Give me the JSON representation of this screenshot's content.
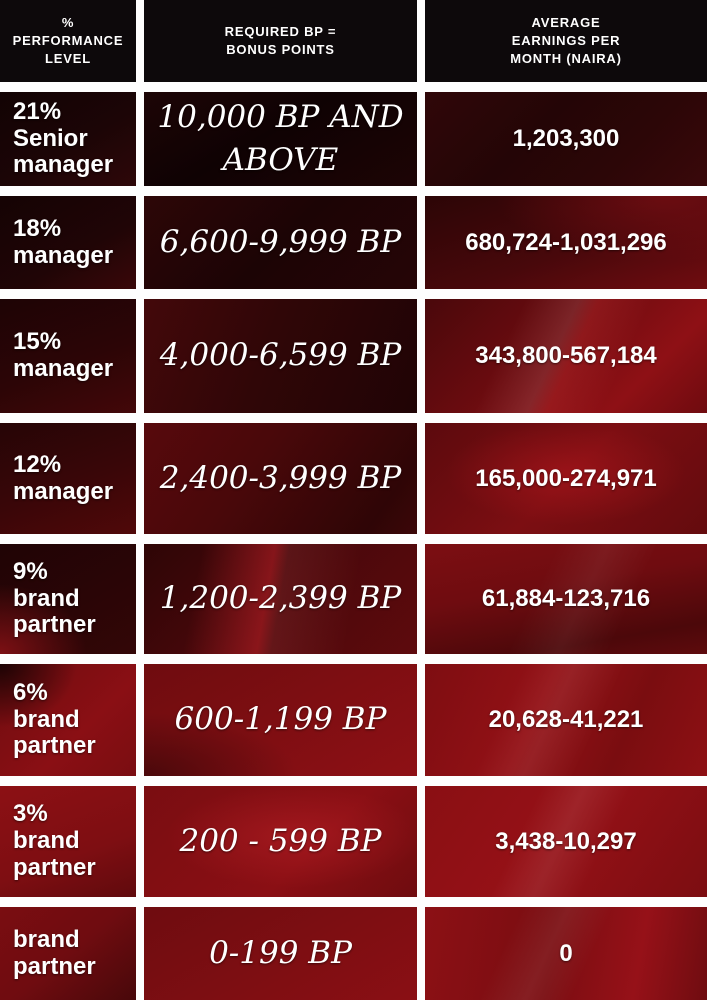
{
  "colors": {
    "grid_gap_white": "#fefefe",
    "header_black": "#0d090b",
    "silk_red_bright": "#8a0e12",
    "silk_red_dark": "#1c0506",
    "text_white": "#ffffff"
  },
  "chart_data": {
    "type": "table",
    "title": "Performance level vs required bonus points and average monthly earnings (Naira)",
    "columns": [
      "% PERFORMANCE LEVEL",
      "REQUIRED BP = BONUS POINTS",
      "AVERAGE EARNINGS PER MONTH (NAIRA)"
    ],
    "rows": [
      [
        "21% Senior manager",
        "10,000 BP AND ABOVE",
        "1,203,300"
      ],
      [
        "18% manager",
        "6,600-9,999 BP",
        "680,724-1,031,296"
      ],
      [
        "15% manager",
        "4,000-6,599 BP",
        "343,800-567,184"
      ],
      [
        "12% manager",
        "2,400-3,999 BP",
        "165,000-274,971"
      ],
      [
        "9% brand partner",
        "1,200-2,399 BP",
        "61,884-123,716"
      ],
      [
        "6% brand partner",
        "600-1,199 BP",
        "20,628-41,221"
      ],
      [
        "3% brand partner",
        "200 - 599 BP",
        "3,438-10,297"
      ],
      [
        "brand partner",
        "0-199 BP",
        "0"
      ]
    ]
  }
}
